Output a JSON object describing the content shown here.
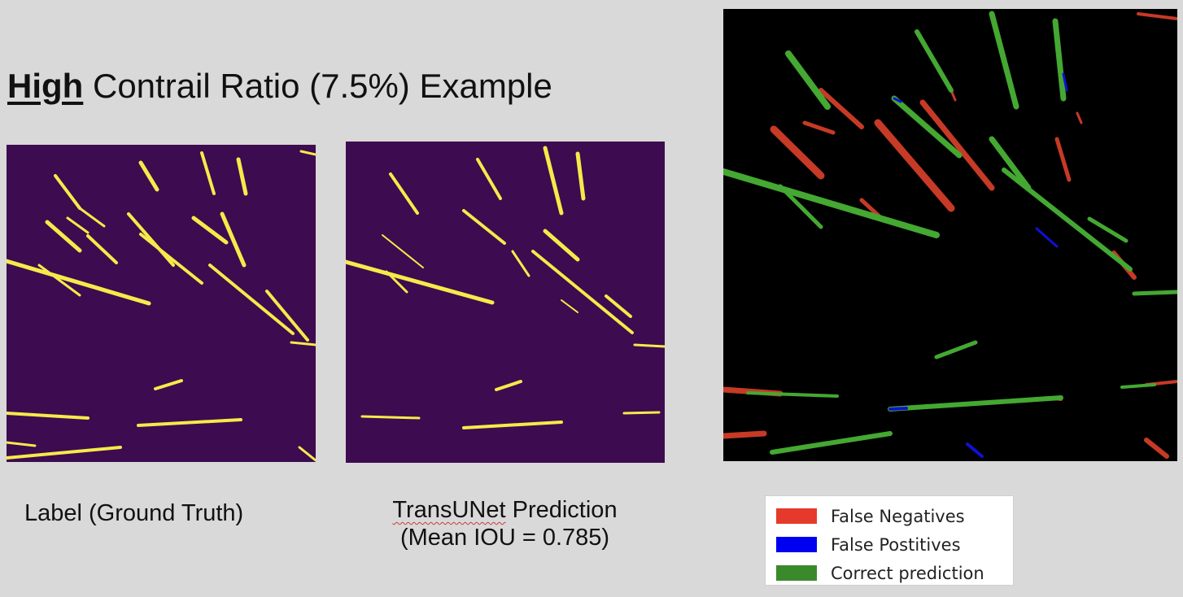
{
  "title": {
    "emphasis": "High",
    "rest": "Contrail Ratio (7.5%) Example"
  },
  "captions": {
    "label": "Label (Ground Truth)",
    "prediction_model": "TransUNet",
    "prediction_rest": "Prediction",
    "prediction_iou": "(Mean IOU = 0.785)"
  },
  "legend": [
    {
      "label": "False Negatives",
      "color": "#e53a2b"
    },
    {
      "label": "False Postitives",
      "color": "#0000f0"
    },
    {
      "label": "Correct prediction",
      "color": "#3a8a2c"
    }
  ],
  "colors": {
    "mask_background": "#3d0b4f",
    "mask_foreground": "#f5ea4a",
    "overlay_background": "#000000",
    "overlay_false_negative": "#c63a26",
    "overlay_false_positive": "#1010d8",
    "overlay_correct": "#44a832"
  }
}
